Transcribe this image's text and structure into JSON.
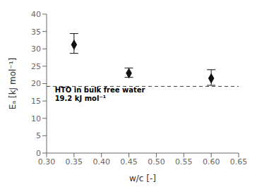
{
  "chart_data": {
    "type": "scatter",
    "x": [
      0.35,
      0.45,
      0.6
    ],
    "values": [
      31.2,
      23.0,
      21.5
    ],
    "yerr_upper": [
      3.2,
      1.5,
      2.5
    ],
    "yerr_lower": [
      2.5,
      1.2,
      2.0
    ],
    "color": "#111111",
    "marker": "diamond",
    "xlabel": "w/c [-]",
    "ylabel": "Eₐ [kJ mol⁻¹]",
    "xlim": [
      0.3,
      0.65
    ],
    "ylim": [
      0,
      40
    ],
    "xticks": [
      {
        "value": 0.3,
        "label": "0.30"
      },
      0.35,
      {
        "value": 0.4,
        "label": "0.40"
      },
      0.45,
      {
        "value": 0.5,
        "label": "0.50"
      },
      0.55,
      {
        "value": 0.6,
        "label": "0.60"
      },
      0.65
    ],
    "yticks": [
      0,
      5,
      10,
      15,
      20,
      25,
      30,
      35,
      40
    ],
    "grid": false,
    "hlines": [
      {
        "y": 19.2,
        "color": "#444444",
        "line_style": "dashed"
      }
    ],
    "annotations": [
      {
        "text": "HTO in bulk free water",
        "x": 0.315,
        "y": 19.0
      },
      {
        "text": "19.2 kJ mol⁻¹",
        "x": 0.315,
        "y": 16.5
      }
    ]
  }
}
